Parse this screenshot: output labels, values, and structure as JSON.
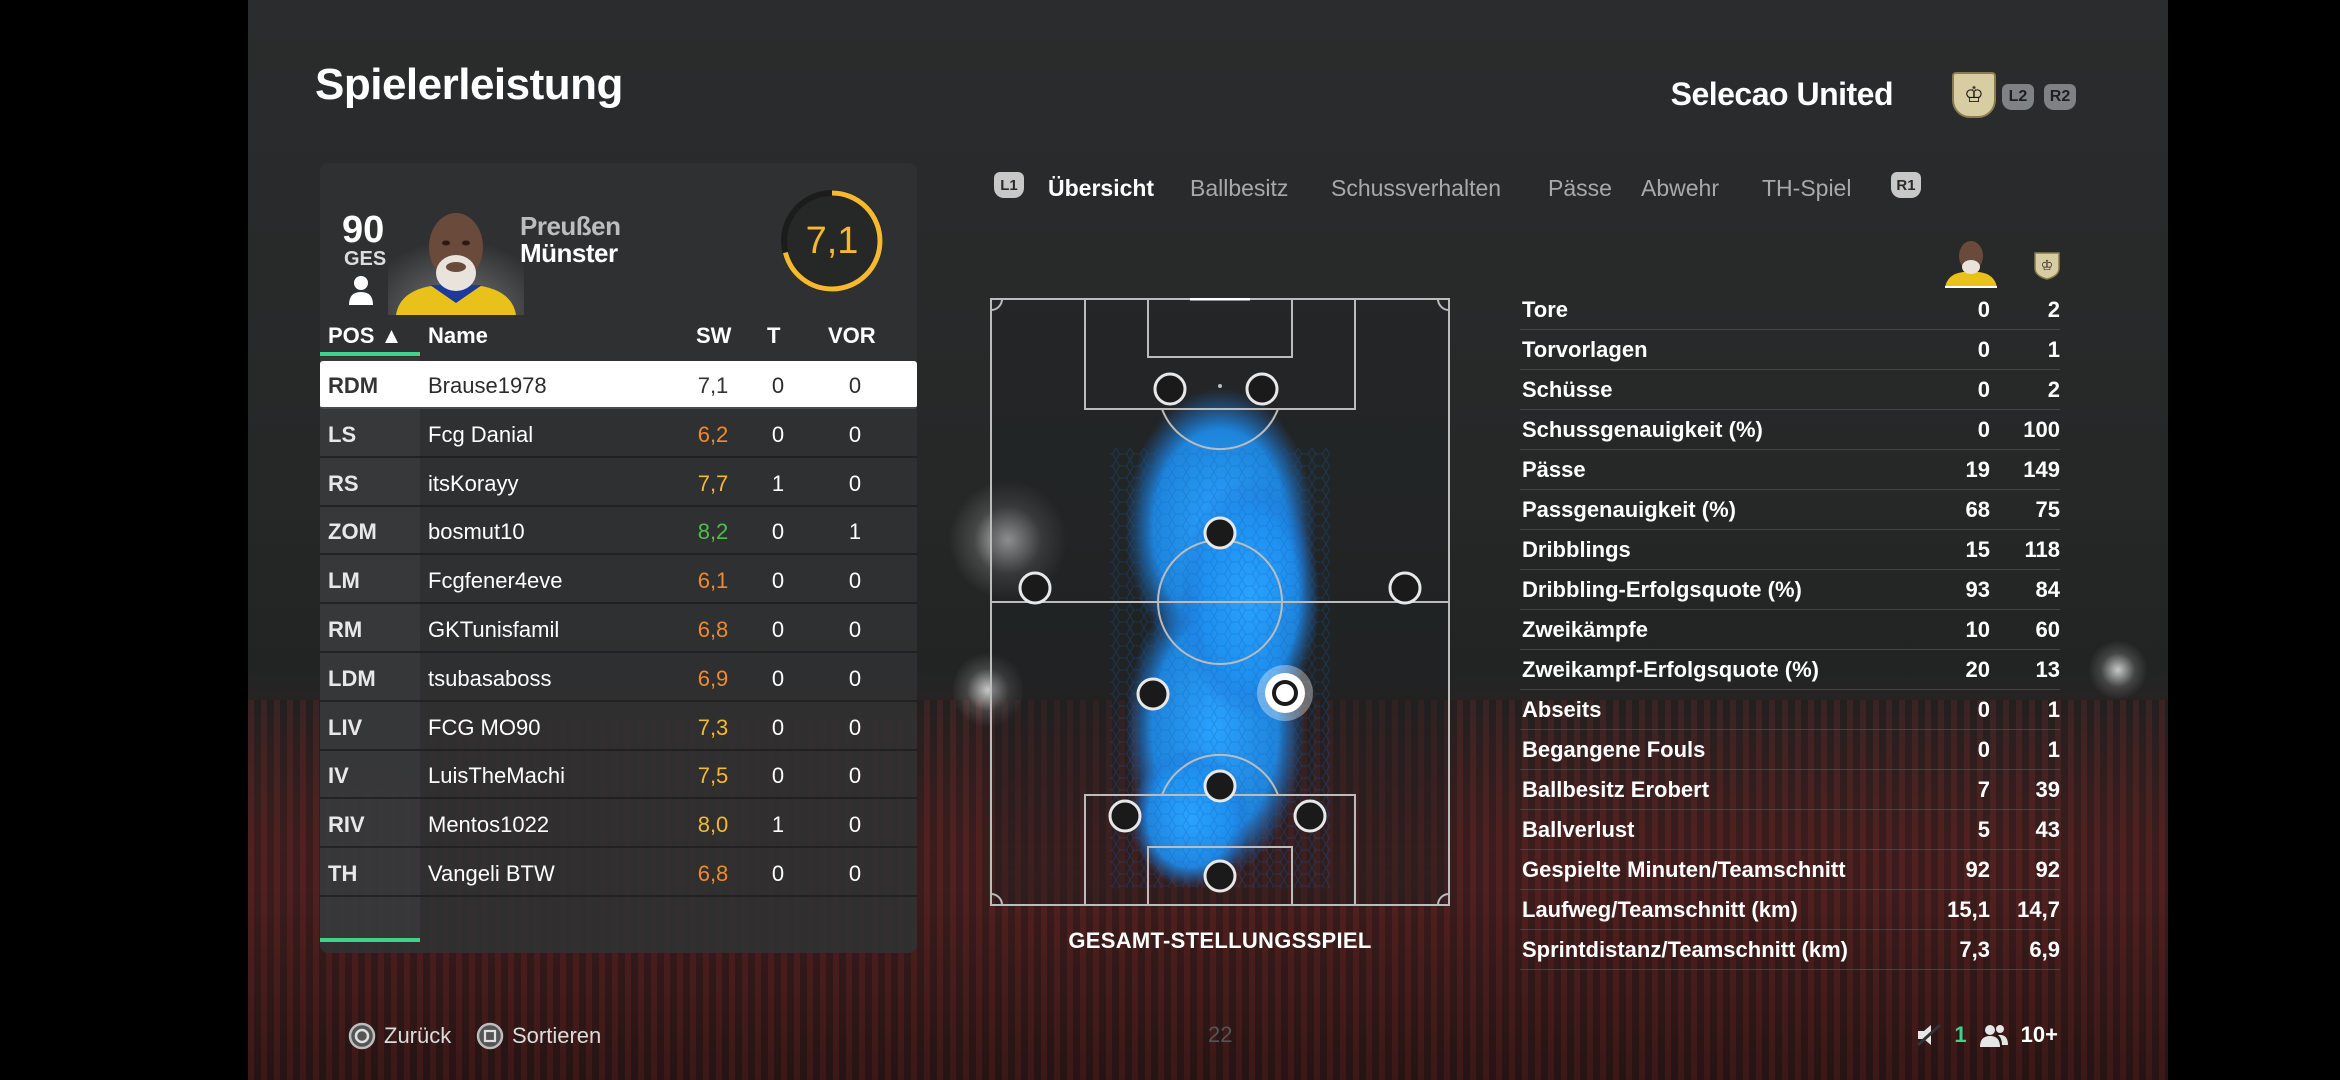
{
  "header": {
    "title": "Spielerleistung",
    "team_name": "Selecao United",
    "badges": [
      "L2",
      "R2"
    ]
  },
  "player_card": {
    "overall": "90",
    "overall_label": "GES",
    "club_line1": "Preußen",
    "club_line2": "Münster",
    "rating": "7,1",
    "rating_fraction": 0.71,
    "rating_color": "#f5b82e"
  },
  "table": {
    "headers": {
      "pos": "POS ▲",
      "name": "Name",
      "sw": "SW",
      "t": "T",
      "vor": "VOR"
    },
    "rows": [
      {
        "pos": "RDM",
        "name": "Brause1978",
        "sw": "7,1",
        "t": "0",
        "vor": "0",
        "color": "#333333"
      },
      {
        "pos": "LS",
        "name": "Fcg Danial",
        "sw": "6,2",
        "t": "0",
        "vor": "0",
        "color": "#f08a2c"
      },
      {
        "pos": "RS",
        "name": "itsKorayy",
        "sw": "7,7",
        "t": "1",
        "vor": "0",
        "color": "#f5b82e"
      },
      {
        "pos": "ZOM",
        "name": "bosmut10",
        "sw": "8,2",
        "t": "0",
        "vor": "1",
        "color": "#4cc04a"
      },
      {
        "pos": "LM",
        "name": "Fcgfener4eve",
        "sw": "6,1",
        "t": "0",
        "vor": "0",
        "color": "#f08a2c"
      },
      {
        "pos": "RM",
        "name": "GKTunisfamil",
        "sw": "6,8",
        "t": "0",
        "vor": "0",
        "color": "#f08a2c"
      },
      {
        "pos": "LDM",
        "name": "tsubasaboss",
        "sw": "6,9",
        "t": "0",
        "vor": "0",
        "color": "#f08a2c"
      },
      {
        "pos": "LIV",
        "name": "FCG MO90",
        "sw": "7,3",
        "t": "0",
        "vor": "0",
        "color": "#f5b82e"
      },
      {
        "pos": "IV",
        "name": "LuisTheMachi",
        "sw": "7,5",
        "t": "0",
        "vor": "0",
        "color": "#f5b82e"
      },
      {
        "pos": "RIV",
        "name": "Mentos1022",
        "sw": "8,0",
        "t": "1",
        "vor": "0",
        "color": "#f5b82e"
      },
      {
        "pos": "TH",
        "name": "Vangeli BTW",
        "sw": "6,8",
        "t": "0",
        "vor": "0",
        "color": "#f08a2c"
      }
    ]
  },
  "tabs": {
    "left_badge": "L1",
    "right_badge": "R1",
    "items": [
      "Übersicht",
      "Ballbesitz",
      "Schussverhalten",
      "Pässe",
      "Abwehr",
      "TH-Spiel"
    ]
  },
  "pitch": {
    "caption": "GESAMT-STELLUNGSSPIEL",
    "heat_color": "#1e8fef"
  },
  "stats": [
    {
      "label": "Tore",
      "player": "0",
      "team": "2"
    },
    {
      "label": "Torvorlagen",
      "player": "0",
      "team": "1"
    },
    {
      "label": "Schüsse",
      "player": "0",
      "team": "2"
    },
    {
      "label": "Schussgenauigkeit (%)",
      "player": "0",
      "team": "100"
    },
    {
      "label": "Pässe",
      "player": "19",
      "team": "149"
    },
    {
      "label": "Passgenauigkeit (%)",
      "player": "68",
      "team": "75"
    },
    {
      "label": "Dribblings",
      "player": "15",
      "team": "118"
    },
    {
      "label": "Dribbling-Erfolgsquote (%)",
      "player": "93",
      "team": "84"
    },
    {
      "label": "Zweikämpfe",
      "player": "10",
      "team": "60"
    },
    {
      "label": "Zweikampf-Erfolgsquote (%)",
      "player": "20",
      "team": "13"
    },
    {
      "label": "Abseits",
      "player": "0",
      "team": "1"
    },
    {
      "label": "Begangene Fouls",
      "player": "0",
      "team": "1"
    },
    {
      "label": "Ballbesitz Erobert",
      "player": "7",
      "team": "39"
    },
    {
      "label": "Ballverlust",
      "player": "5",
      "team": "43"
    },
    {
      "label": "Gespielte Minuten/Teamschnitt",
      "player": "92",
      "team": "92"
    },
    {
      "label": "Laufweg/Teamschnitt (km)",
      "player": "15,1",
      "team": "14,7"
    },
    {
      "label": "Sprintdistanz/Teamschnitt (km)",
      "player": "7,3",
      "team": "6,9"
    }
  ],
  "footer": {
    "back_label": "Zurück",
    "sort_label": "Sortieren",
    "page": "22",
    "mic_count": "1",
    "players_count": "10+"
  }
}
